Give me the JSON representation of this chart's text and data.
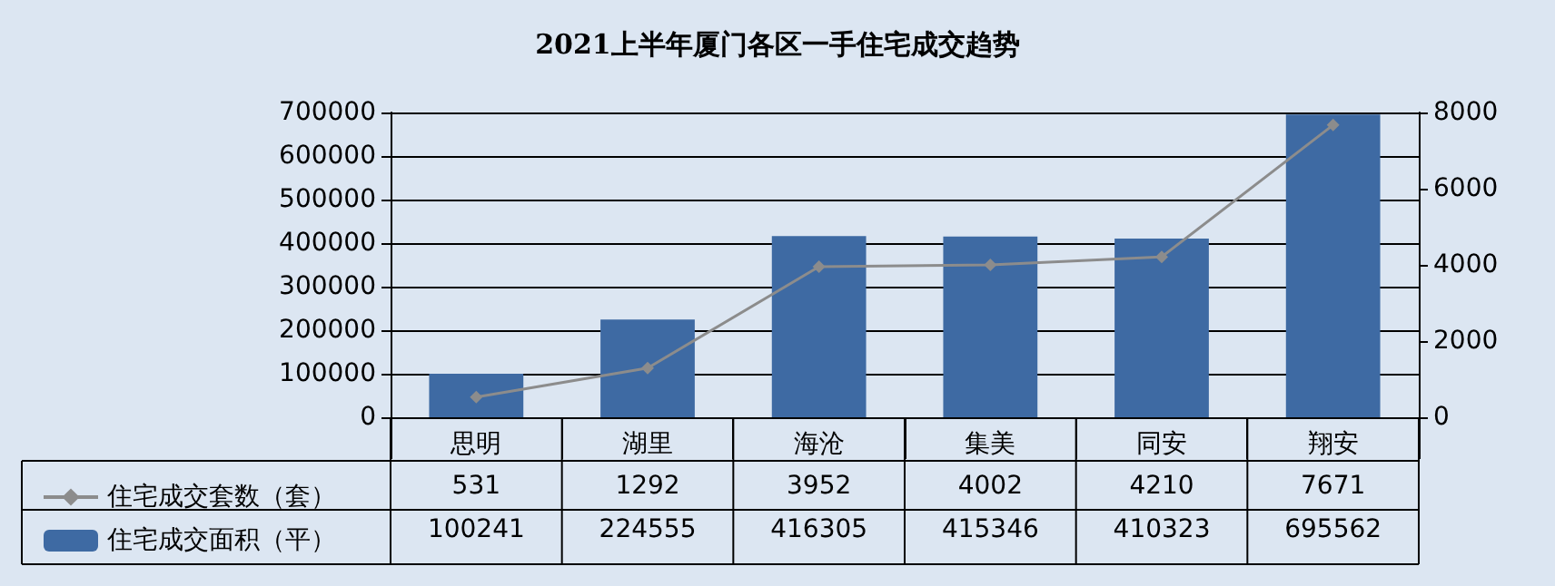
{
  "chart_data": {
    "type": "bar",
    "title": "2021上半年厦门各区一手住宅成交趋势",
    "categories": [
      "思明",
      "湖里",
      "海沧",
      "集美",
      "同安",
      "翔安"
    ],
    "series": [
      {
        "name": "住宅成交套数（套）",
        "type": "line",
        "axis": "y2",
        "color": "#8c8c8c",
        "values": [
          531,
          1292,
          3952,
          4002,
          4210,
          7671
        ]
      },
      {
        "name": "住宅成交面积（平）",
        "color": "#3e6aa3",
        "values": [
          100241,
          224555,
          416305,
          415346,
          410323,
          695562
        ]
      }
    ],
    "ylim": [
      0,
      700000
    ],
    "yticks": [
      0,
      100000,
      200000,
      300000,
      400000,
      500000,
      600000,
      700000
    ],
    "y2lim": [
      0,
      8000
    ],
    "y2ticks": [
      0,
      2000,
      4000,
      6000,
      8000
    ],
    "grid": "y",
    "legend": "bottom left",
    "marker": "diamond",
    "data_labels": true
  }
}
